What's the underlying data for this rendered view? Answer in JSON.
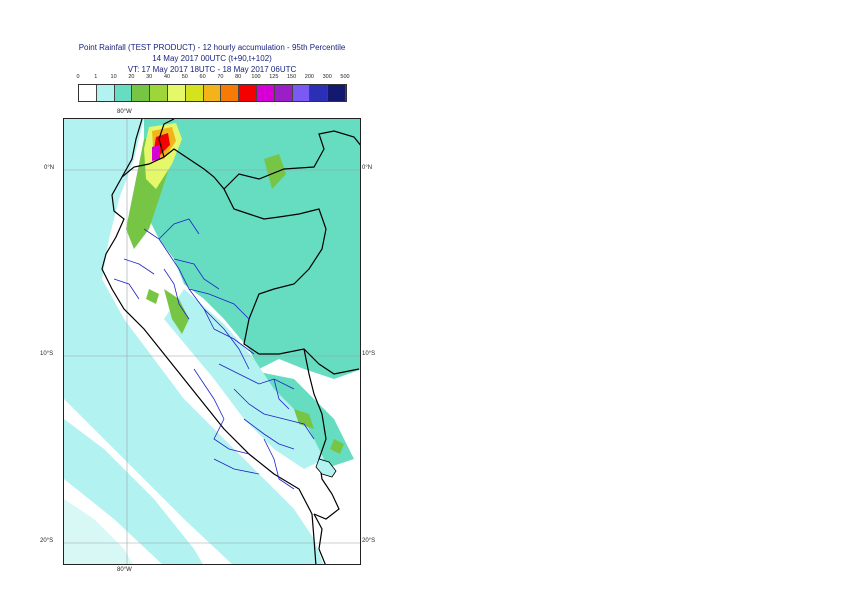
{
  "title": {
    "line1": "Point Rainfall (TEST PRODUCT) - 12 hourly accumulation - 95th Percentile",
    "line2": "14 May 2017 00UTC (t+90,t+102)",
    "line3": "VT: 17 May 2017 18UTC - 18 May 2017 06UTC"
  },
  "legend": {
    "thresholds": [
      "0",
      "1",
      "10",
      "20",
      "30",
      "40",
      "50",
      "60",
      "70",
      "80",
      "100",
      "125",
      "150",
      "200",
      "300",
      "500"
    ],
    "colors": [
      "#ffffff",
      "#b2f2f0",
      "#66dcc0",
      "#77c544",
      "#9ed63a",
      "#e4f86a",
      "#d6e21e",
      "#f2b41a",
      "#f57a06",
      "#f40000",
      "#d600d6",
      "#9b1fc8",
      "#7a5af2",
      "#2a2fb5",
      "#14186f"
    ]
  },
  "axes": {
    "lon_top": "80°W",
    "lon_bottom": "80°W",
    "lat_0_left": "0°N",
    "lat_0_right": "0°N",
    "lat_10_left": "10°S",
    "lat_10_right": "10°S",
    "lat_20_left": "20°S",
    "lat_20_right": "20°S"
  },
  "colors": {
    "ocean_light": "#b2f2f0",
    "land_teal": "#66dcc0",
    "country_border": "#000000",
    "region_border": "#1e22c8",
    "graticule": "#9aa4a4"
  }
}
